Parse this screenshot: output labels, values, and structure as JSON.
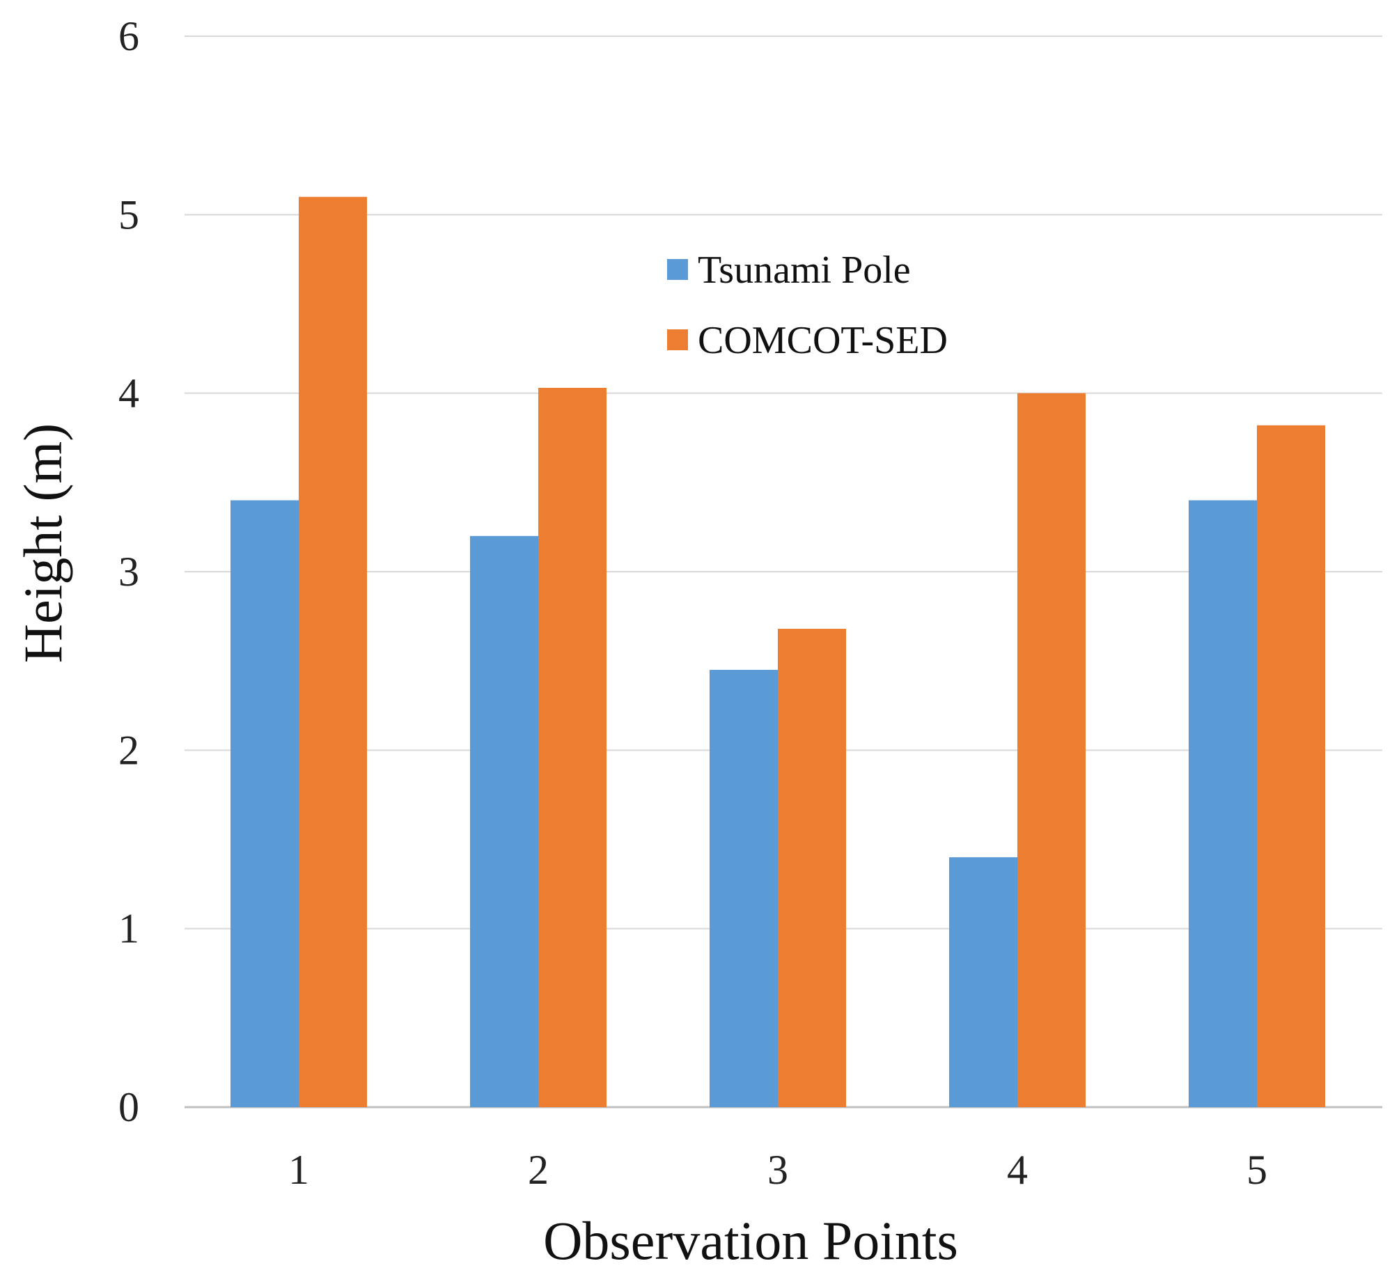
{
  "chart_data": {
    "type": "bar",
    "title": "",
    "xlabel": "Observation Points",
    "ylabel": "Height (m)",
    "ylim": [
      0,
      6
    ],
    "yticks": [
      0,
      1,
      2,
      3,
      4,
      5,
      6
    ],
    "categories": [
      "1",
      "2",
      "3",
      "4",
      "5"
    ],
    "grid": true,
    "legend_position": "top-center",
    "series": [
      {
        "name": "Tsunami Pole",
        "color": "#5b9bd5",
        "values": [
          3.4,
          3.2,
          2.45,
          1.4,
          3.4
        ]
      },
      {
        "name": "COMCOT-SED",
        "color": "#ed7d31",
        "values": [
          5.1,
          4.03,
          2.68,
          4.0,
          3.82
        ]
      }
    ]
  }
}
